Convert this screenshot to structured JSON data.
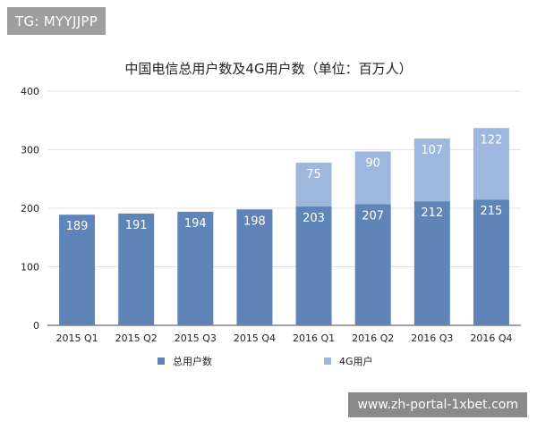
{
  "tag": "TG: MYYJJPP",
  "watermark": "www.zh-portal-1xbet.com",
  "chart_data": {
    "type": "bar",
    "stacked": true,
    "title": "中国电信总用户数及4G用户数（单位：百万人）",
    "categories": [
      "2015 Q1",
      "2015 Q2",
      "2015 Q3",
      "2015 Q4",
      "2016 Q1",
      "2016 Q2",
      "2016 Q3",
      "2016 Q4"
    ],
    "series": [
      {
        "name": "总用户数",
        "color": "#5f84b8",
        "values": [
          189,
          191,
          194,
          198,
          203,
          207,
          212,
          215
        ]
      },
      {
        "name": "4G用户",
        "color": "#9db8dc",
        "values": [
          null,
          null,
          null,
          null,
          75,
          90,
          107,
          122
        ]
      }
    ],
    "ylim": [
      0,
      400
    ],
    "yticks": [
      0,
      100,
      200,
      300,
      400
    ],
    "grid": true,
    "legend_position": "bottom"
  }
}
